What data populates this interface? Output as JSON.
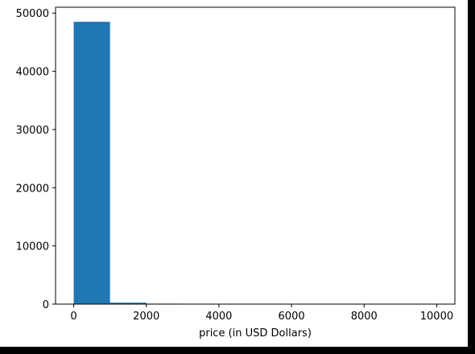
{
  "chart_data": {
    "type": "histogram",
    "title": "",
    "xlabel": "price (in USD Dollars)",
    "ylabel": "",
    "bins": [
      {
        "x0": 0,
        "x1": 1000,
        "count": 48500
      },
      {
        "x0": 1000,
        "x1": 2000,
        "count": 250
      },
      {
        "x0": 2000,
        "x1": 3000,
        "count": 80
      },
      {
        "x0": 3000,
        "x1": 4000,
        "count": 30
      },
      {
        "x0": 4000,
        "x1": 5000,
        "count": 15
      },
      {
        "x0": 5000,
        "x1": 6000,
        "count": 10
      },
      {
        "x0": 6000,
        "x1": 7000,
        "count": 8
      },
      {
        "x0": 7000,
        "x1": 8000,
        "count": 5
      },
      {
        "x0": 8000,
        "x1": 9000,
        "count": 3
      },
      {
        "x0": 9000,
        "x1": 10000,
        "count": 20
      }
    ],
    "xlim": [
      -500,
      10500
    ],
    "ylim": [
      0,
      51000
    ],
    "xticks": [
      0,
      2000,
      4000,
      6000,
      8000,
      10000
    ],
    "yticks": [
      0,
      10000,
      20000,
      30000,
      40000,
      50000
    ],
    "bar_color": "#1f77b4",
    "grid": false,
    "legend": "none"
  }
}
